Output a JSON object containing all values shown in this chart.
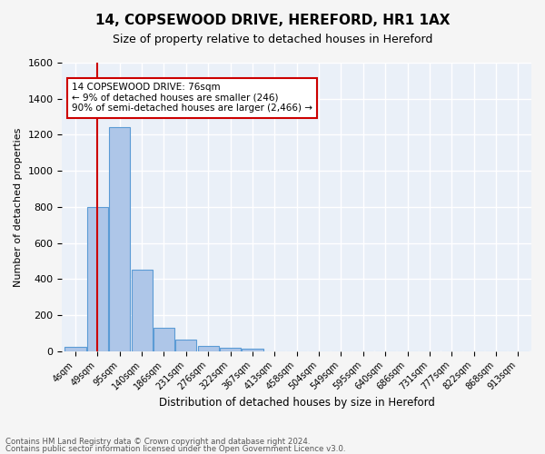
{
  "title1": "14, COPSEWOOD DRIVE, HEREFORD, HR1 1AX",
  "title2": "Size of property relative to detached houses in Hereford",
  "xlabel": "Distribution of detached houses by size in Hereford",
  "ylabel": "Number of detached properties",
  "bin_labels": [
    "4sqm",
    "49sqm",
    "95sqm",
    "140sqm",
    "186sqm",
    "231sqm",
    "276sqm",
    "322sqm",
    "367sqm",
    "413sqm",
    "458sqm",
    "504sqm",
    "549sqm",
    "595sqm",
    "640sqm",
    "686sqm",
    "731sqm",
    "777sqm",
    "822sqm",
    "868sqm",
    "913sqm"
  ],
  "bar_heights": [
    25,
    800,
    1240,
    450,
    130,
    65,
    28,
    18,
    15,
    0,
    0,
    0,
    0,
    0,
    0,
    0,
    0,
    0,
    0,
    0,
    0
  ],
  "bar_color": "#aec6e8",
  "bar_edge_color": "#5b9bd5",
  "background_color": "#eaf0f8",
  "grid_color": "#ffffff",
  "vline_x": 1.0,
  "vline_color": "#cc0000",
  "ylim": [
    0,
    1600
  ],
  "yticks": [
    0,
    200,
    400,
    600,
    800,
    1000,
    1200,
    1400,
    1600
  ],
  "annotation_text": "14 COPSEWOOD DRIVE: 76sqm\n← 9% of detached houses are smaller (246)\n90% of semi-detached houses are larger (2,466) →",
  "annotation_box_color": "#ffffff",
  "annotation_border_color": "#cc0000",
  "footer1": "Contains HM Land Registry data © Crown copyright and database right 2024.",
  "footer2": "Contains public sector information licensed under the Open Government Licence v3.0."
}
